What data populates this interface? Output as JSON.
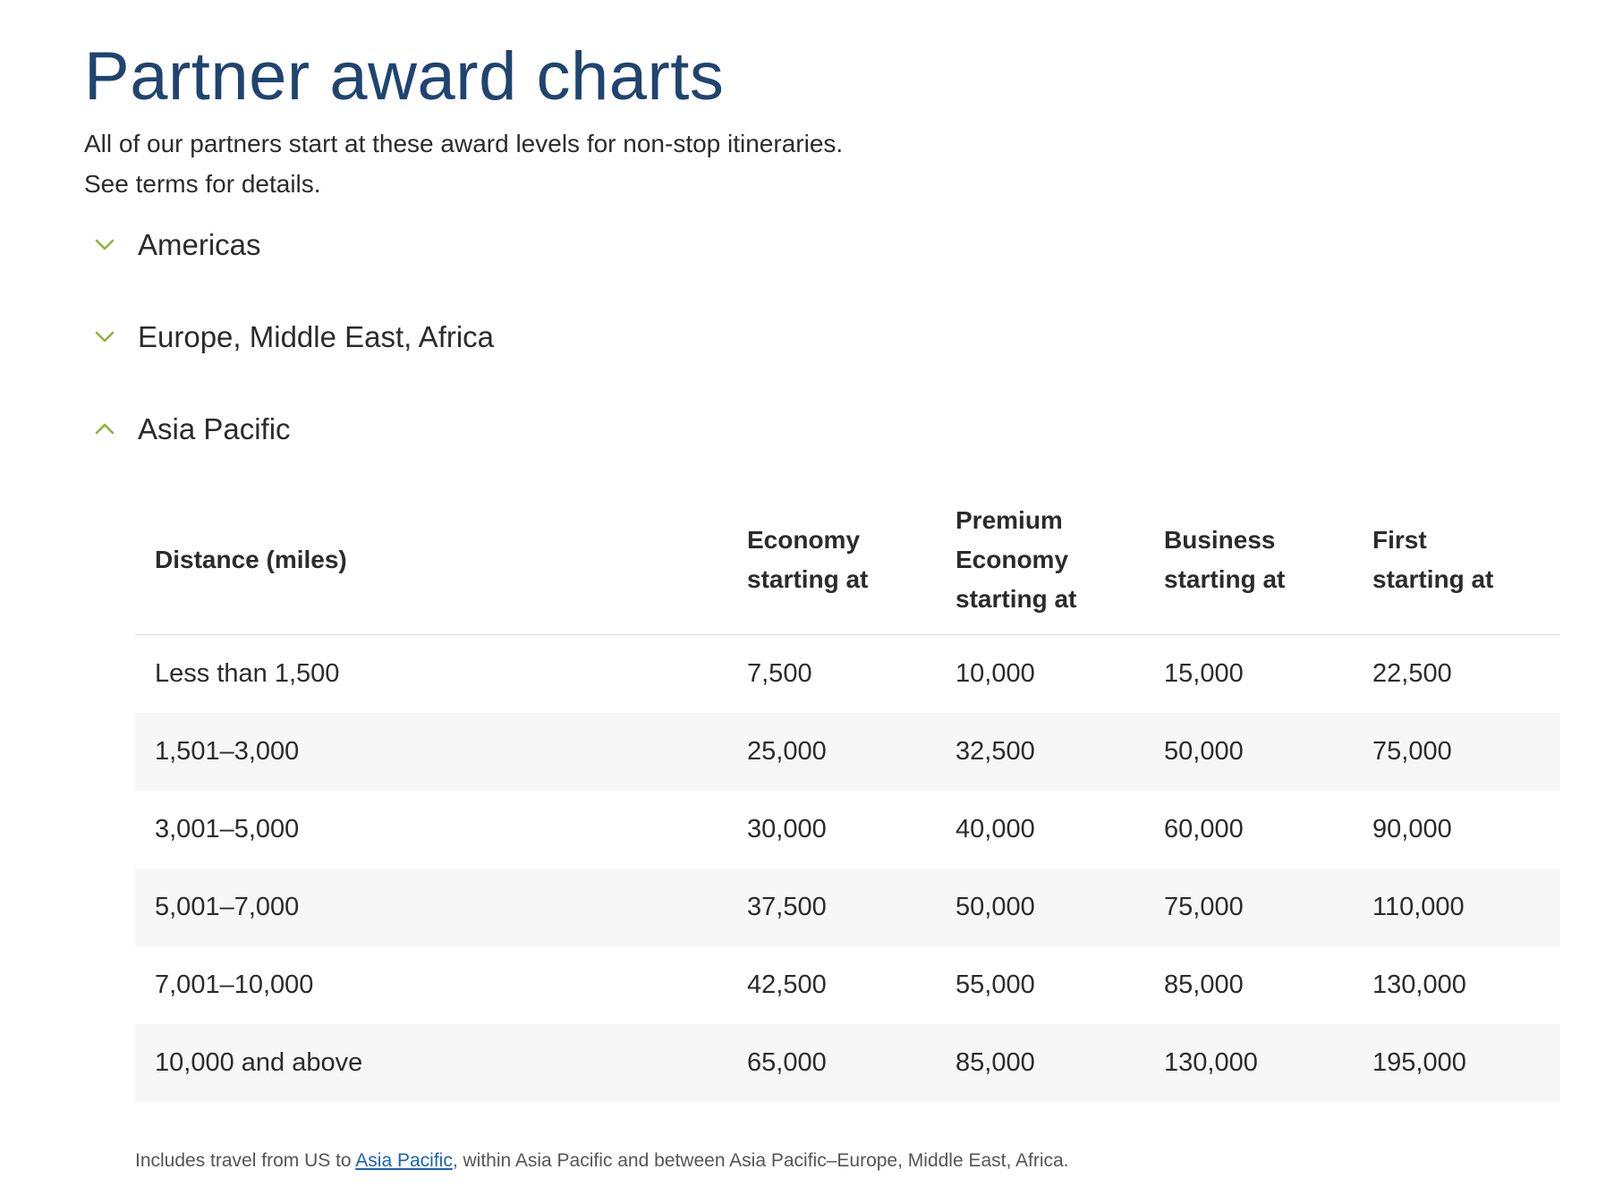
{
  "page": {
    "title": "Partner award charts",
    "subtitle_line1": "All of our partners start at these award levels for non-stop itineraries.",
    "subtitle_line2": "See terms for details."
  },
  "accordions": [
    {
      "label": "Americas",
      "expanded": false,
      "icon": "chevron-down-icon"
    },
    {
      "label": "Europe, Middle East, Africa",
      "expanded": false,
      "icon": "chevron-down-icon"
    },
    {
      "label": "Asia Pacific",
      "expanded": true,
      "icon": "chevron-up-icon"
    }
  ],
  "colors": {
    "title": "#1f4470",
    "chevron": "#8db33a",
    "link": "#1a63b8",
    "stripe": "#f7f7f7"
  },
  "table": {
    "headers": {
      "distance": "Distance (miles)",
      "economy_1": "Economy",
      "economy_2": "starting at",
      "premium_1": "Premium",
      "premium_2": "Economy",
      "premium_3": "starting at",
      "business_1": "Business",
      "business_2": "starting at",
      "first_1": "First",
      "first_2": "starting at"
    },
    "rows": [
      {
        "distance": "Less than 1,500",
        "economy": "7,500",
        "premium": "10,000",
        "business": "15,000",
        "first": "22,500"
      },
      {
        "distance": "1,501–3,000",
        "economy": "25,000",
        "premium": "32,500",
        "business": "50,000",
        "first": "75,000"
      },
      {
        "distance": "3,001–5,000",
        "economy": "30,000",
        "premium": "40,000",
        "business": "60,000",
        "first": "90,000"
      },
      {
        "distance": "5,001–7,000",
        "economy": "37,500",
        "premium": "50,000",
        "business": "75,000",
        "first": "110,000"
      },
      {
        "distance": "7,001–10,000",
        "economy": "42,500",
        "premium": "55,000",
        "business": "85,000",
        "first": "130,000"
      },
      {
        "distance": "10,000 and above",
        "economy": "65,000",
        "premium": "85,000",
        "business": "130,000",
        "first": "195,000"
      }
    ]
  },
  "footnote": {
    "before": "Includes travel from US to ",
    "link": "Asia Pacific",
    "after": ", within Asia Pacific and between Asia Pacific–Europe, Middle East, Africa."
  }
}
